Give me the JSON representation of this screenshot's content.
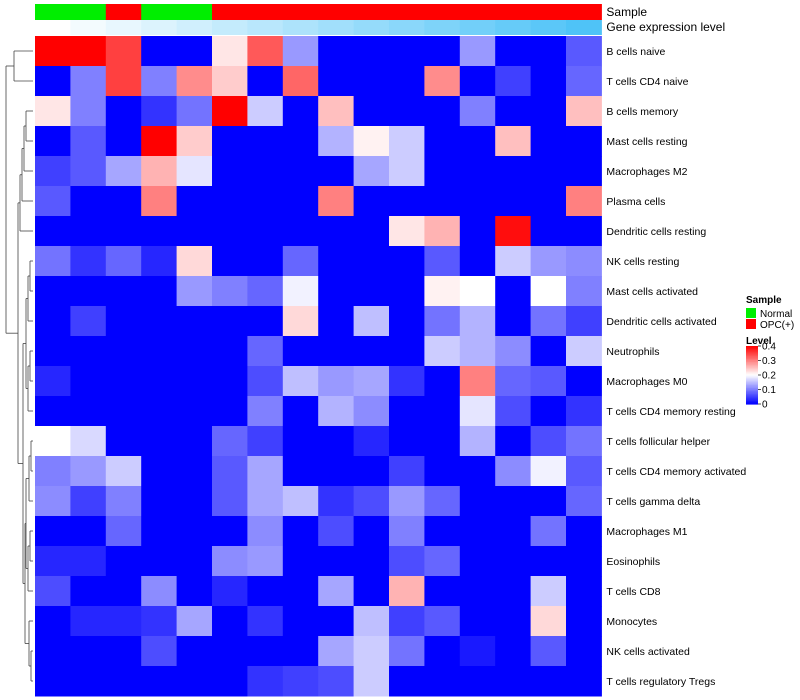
{
  "chart_data": {
    "type": "heatmap",
    "columns": 16,
    "annotations": [
      {
        "name": "Sample",
        "values": [
          "Normal",
          "Normal",
          "OPC(+)",
          "Normal",
          "Normal",
          "OPC(+)",
          "OPC(+)",
          "OPC(+)",
          "OPC(+)",
          "OPC(+)",
          "OPC(+)",
          "OPC(+)",
          "OPC(+)",
          "OPC(+)",
          "OPC(+)",
          "OPC(+)"
        ]
      },
      {
        "name": "Gene expression level",
        "values": [
          0.01,
          0.02,
          0.03,
          0.04,
          0.05,
          0.06,
          0.07,
          0.08,
          0.09,
          0.1,
          0.11,
          0.12,
          0.13,
          0.14,
          0.15,
          0.16
        ]
      }
    ],
    "rows": [
      {
        "label": "B cells naive",
        "values": [
          0.4,
          0.4,
          0.35,
          0.0,
          0.0,
          0.22,
          0.33,
          0.12,
          0.0,
          0.0,
          0.0,
          0.0,
          0.12,
          0.0,
          0.0,
          0.07
        ]
      },
      {
        "label": "T cells CD4 naive",
        "values": [
          0.0,
          0.1,
          0.35,
          0.1,
          0.29,
          0.24,
          0.0,
          0.32,
          0.0,
          0.0,
          0.0,
          0.29,
          0.0,
          0.05,
          0.0,
          0.08
        ]
      },
      {
        "label": "B cells memory",
        "values": [
          0.22,
          0.1,
          0.0,
          0.04,
          0.09,
          0.4,
          0.16,
          0.0,
          0.25,
          0.0,
          0.0,
          0.0,
          0.1,
          0.0,
          0.0,
          0.25
        ]
      },
      {
        "label": "Mast cells resting",
        "values": [
          0.0,
          0.07,
          0.0,
          0.4,
          0.24,
          0.0,
          0.0,
          0.0,
          0.14,
          0.21,
          0.16,
          0.0,
          0.0,
          0.25,
          0.0,
          0.0
        ]
      },
      {
        "label": "Macrophages M2",
        "values": [
          0.05,
          0.07,
          0.13,
          0.26,
          0.18,
          0.0,
          0.0,
          0.0,
          0.0,
          0.13,
          0.16,
          0.0,
          0.0,
          0.0,
          0.0,
          0.0
        ]
      },
      {
        "label": "Plasma cells",
        "values": [
          0.07,
          0.0,
          0.0,
          0.3,
          0.0,
          0.0,
          0.0,
          0.0,
          0.3,
          0.0,
          0.0,
          0.0,
          0.0,
          0.0,
          0.0,
          0.3
        ]
      },
      {
        "label": "Dendritic cells resting",
        "values": [
          0.0,
          0.0,
          0.0,
          0.0,
          0.0,
          0.0,
          0.0,
          0.0,
          0.0,
          0.0,
          0.22,
          0.26,
          0.0,
          0.39,
          0.0,
          0.0
        ]
      },
      {
        "label": "NK cells resting",
        "values": [
          0.09,
          0.04,
          0.08,
          0.03,
          0.23,
          0.0,
          0.0,
          0.08,
          0.0,
          0.0,
          0.0,
          0.07,
          0.0,
          0.16,
          0.12,
          0.11
        ]
      },
      {
        "label": "Mast cells activated",
        "values": [
          0.0,
          0.0,
          0.0,
          0.0,
          0.12,
          0.1,
          0.08,
          0.19,
          0.0,
          0.0,
          0.0,
          0.21,
          0.2,
          0.0,
          0.2,
          0.1
        ]
      },
      {
        "label": "Dendritic cells activated",
        "values": [
          0.0,
          0.05,
          0.0,
          0.0,
          0.0,
          0.0,
          0.0,
          0.23,
          0.0,
          0.15,
          0.0,
          0.09,
          0.14,
          0.0,
          0.09,
          0.05
        ]
      },
      {
        "label": "Neutrophils",
        "values": [
          0.0,
          0.0,
          0.0,
          0.0,
          0.0,
          0.0,
          0.08,
          0.0,
          0.0,
          0.0,
          0.0,
          0.16,
          0.14,
          0.11,
          0.0,
          0.16
        ]
      },
      {
        "label": "Macrophages M0",
        "values": [
          0.03,
          0.0,
          0.0,
          0.0,
          0.0,
          0.0,
          0.06,
          0.15,
          0.12,
          0.13,
          0.04,
          0.0,
          0.3,
          0.08,
          0.07,
          0.0
        ]
      },
      {
        "label": "T cells CD4 memory resting",
        "values": [
          0.0,
          0.0,
          0.0,
          0.0,
          0.0,
          0.0,
          0.1,
          0.0,
          0.14,
          0.11,
          0.0,
          0.0,
          0.18,
          0.06,
          0.0,
          0.04
        ]
      },
      {
        "label": "T cells follicular helper",
        "values": [
          0.2,
          0.17,
          0.0,
          0.0,
          0.0,
          0.08,
          0.05,
          0.0,
          0.0,
          0.03,
          0.0,
          0.0,
          0.14,
          0.0,
          0.06,
          0.09
        ]
      },
      {
        "label": "T cells CD4 memory activated",
        "values": [
          0.1,
          0.12,
          0.16,
          0.0,
          0.0,
          0.07,
          0.13,
          0.0,
          0.0,
          0.0,
          0.05,
          0.0,
          0.0,
          0.11,
          0.19,
          0.07
        ]
      },
      {
        "label": "T cells gamma delta",
        "values": [
          0.11,
          0.05,
          0.1,
          0.0,
          0.0,
          0.07,
          0.13,
          0.15,
          0.04,
          0.06,
          0.12,
          0.08,
          0.0,
          0.0,
          0.0,
          0.08
        ]
      },
      {
        "label": "Macrophages M1",
        "values": [
          0.0,
          0.0,
          0.08,
          0.0,
          0.0,
          0.0,
          0.11,
          0.0,
          0.06,
          0.0,
          0.1,
          0.0,
          0.0,
          0.0,
          0.09,
          0.0
        ]
      },
      {
        "label": "Eosinophils",
        "values": [
          0.03,
          0.03,
          0.0,
          0.0,
          0.0,
          0.11,
          0.12,
          0.0,
          0.0,
          0.0,
          0.06,
          0.08,
          0.0,
          0.0,
          0.0,
          0.0
        ]
      },
      {
        "label": "T cells CD8",
        "values": [
          0.06,
          0.0,
          0.0,
          0.11,
          0.0,
          0.03,
          0.0,
          0.0,
          0.13,
          0.0,
          0.26,
          0.0,
          0.0,
          0.0,
          0.16,
          0.0
        ]
      },
      {
        "label": "Monocytes",
        "values": [
          0.0,
          0.03,
          0.03,
          0.04,
          0.13,
          0.0,
          0.04,
          0.0,
          0.0,
          0.15,
          0.05,
          0.07,
          0.0,
          0.0,
          0.23,
          0.0
        ]
      },
      {
        "label": "NK cells activated",
        "values": [
          0.0,
          0.0,
          0.0,
          0.06,
          0.0,
          0.0,
          0.0,
          0.0,
          0.13,
          0.16,
          0.09,
          0.0,
          0.02,
          0.0,
          0.07,
          0.0
        ]
      },
      {
        "label": "T cells regulatory  Tregs",
        "values": [
          0.0,
          0.0,
          0.0,
          0.0,
          0.0,
          0.0,
          0.04,
          0.05,
          0.06,
          0.16,
          0.0,
          0.0,
          0.0,
          0.0,
          0.0,
          0.0
        ]
      }
    ],
    "legend": {
      "sample_title": "Sample",
      "sample_entries": [
        {
          "label": "Normal",
          "color": "#00ee00"
        },
        {
          "label": "OPC(+)",
          "color": "#ff0000"
        }
      ],
      "level_title": "Level",
      "level_ticks": [
        "0.4",
        "0.3",
        "0.2",
        "0.1",
        "0"
      ],
      "level_tick_values": [
        0.4,
        0.3,
        0.2,
        0.1,
        0.0
      ]
    },
    "color_scale": {
      "low": "#0000ff",
      "mid": "#ffffff",
      "high": "#ff0000",
      "min": 0,
      "mid_value": 0.2,
      "max": 0.4
    },
    "gene_level_scale": {
      "low": "#ffffff",
      "high": "#4fc3f7"
    },
    "grid": false,
    "legend_position": "right"
  }
}
